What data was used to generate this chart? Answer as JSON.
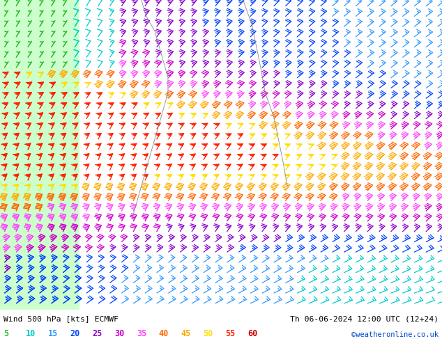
{
  "title_left": "Wind 500 hPa [kts] ECMWF",
  "title_right": "Th 06-06-2024 12:00 UTC (12+24)",
  "credit": "©weatheronline.co.uk",
  "legend_values": [
    5,
    10,
    15,
    20,
    25,
    30,
    35,
    40,
    45,
    50,
    55,
    60
  ],
  "legend_colors": [
    "#33bb33",
    "#00cccc",
    "#3399ff",
    "#0044ff",
    "#8800cc",
    "#cc00cc",
    "#ff44ff",
    "#ff6600",
    "#ffaa00",
    "#ffdd00",
    "#ff2200",
    "#cc0000"
  ],
  "bg_color_land": "#99ee99",
  "bg_color_sea": "#ccffcc",
  "bottom_bar_color": "#ffffff",
  "figwidth": 6.34,
  "figheight": 4.9,
  "dpi": 100
}
